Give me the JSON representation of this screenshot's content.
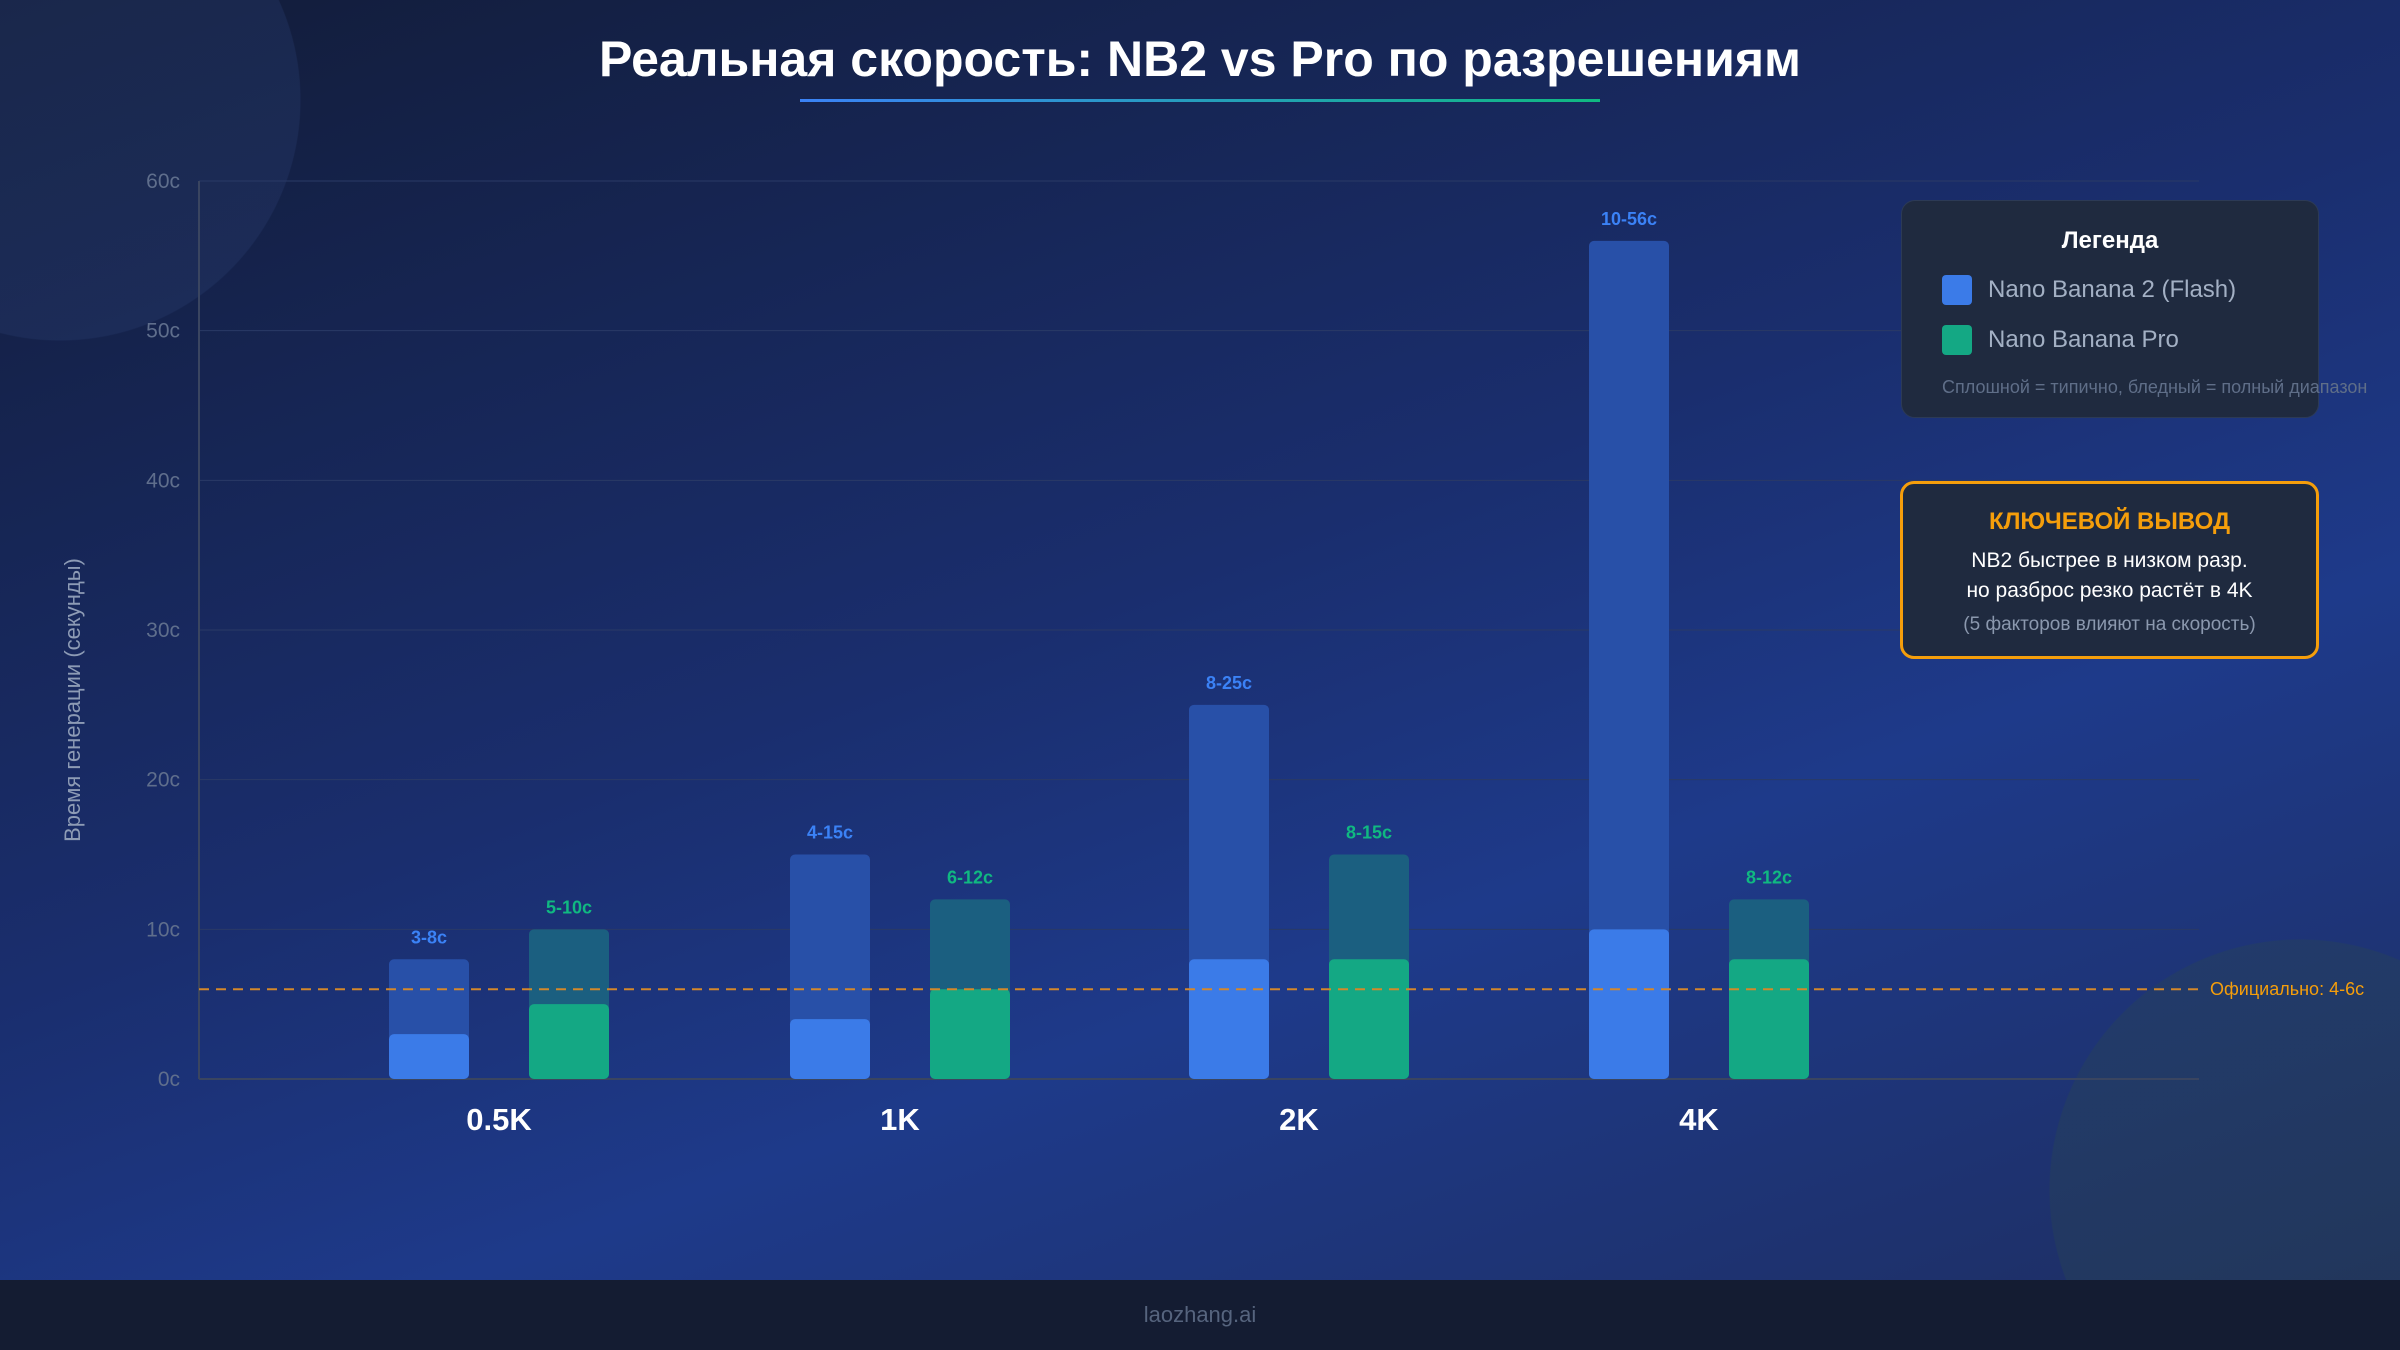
{
  "title": "Реальная скорость: NB2 vs Pro по разрешениям",
  "chart_data": {
    "type": "bar",
    "title": "Реальная скорость: NB2 vs Pro по разрешениям",
    "ylabel": "Время генерации (секунды)",
    "xlabel": "",
    "ylim": [
      0,
      60
    ],
    "yticks": [
      "0с",
      "10с",
      "20с",
      "30с",
      "40с",
      "50с",
      "60с"
    ],
    "ytick_values": [
      0,
      10,
      20,
      30,
      40,
      50,
      60
    ],
    "grid": true,
    "categories": [
      "0.5K",
      "1K",
      "2K",
      "4K"
    ],
    "series": [
      {
        "name": "Nano Banana 2 (Flash)",
        "color": "#3b7be8",
        "range_color": "#2850a8",
        "typical": [
          3,
          4,
          8,
          10
        ],
        "max": [
          8,
          15,
          25,
          56
        ],
        "labels": [
          "3-8с",
          "4-15с",
          "8-25с",
          "10-56с"
        ],
        "label_color": "#3b82f6"
      },
      {
        "name": "Nano Banana Pro",
        "color": "#14a884",
        "range_color": "#1b5f80",
        "typical": [
          5,
          6,
          8,
          8
        ],
        "max": [
          10,
          12,
          15,
          12
        ],
        "labels": [
          "5-10с",
          "6-12с",
          "8-15с",
          "8-12с"
        ],
        "label_color": "#10b981"
      }
    ],
    "reference_line": {
      "value": 6,
      "label": "Официально: 4-6с",
      "color": "#d4882a"
    }
  },
  "legend": {
    "title": "Легенда",
    "items": [
      {
        "label": "Nano Banana 2 (Flash)",
        "color": "#3b7be8"
      },
      {
        "label": "Nano Banana Pro",
        "color": "#14a884"
      }
    ],
    "note": "Сплошной = типично, бледный = полный диапазон"
  },
  "key_takeaway": {
    "title": "КЛЮЧЕВОЙ ВЫВОД",
    "line1": "NB2 быстрее в низком разр.",
    "line2": "но разброс резко растёт в 4K",
    "note": "(5 факторов влияют на скорость)"
  },
  "footer": "laozhang.ai"
}
